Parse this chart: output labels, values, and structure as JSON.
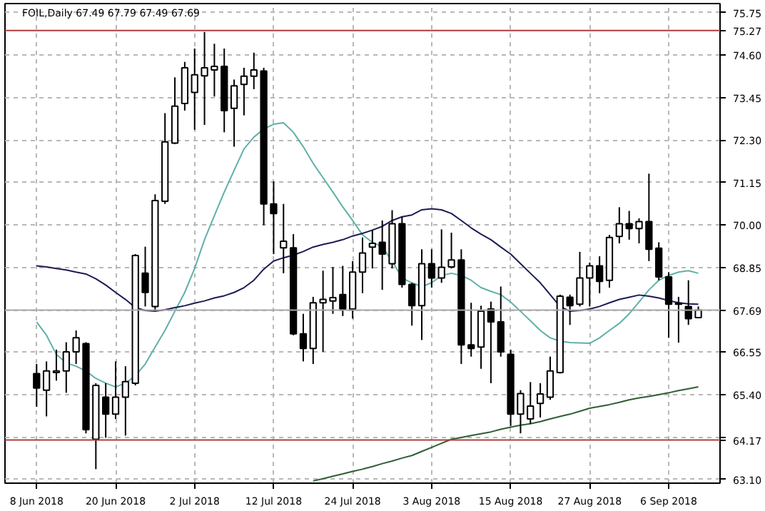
{
  "chart_data": {
    "type": "candlestick",
    "title": "FOIL,Daily  67.49 67.79 67.49 67.69",
    "categories": [
      "8 Jun 2018",
      null,
      null,
      null,
      null,
      null,
      null,
      null,
      "20 Jun 2018",
      null,
      null,
      null,
      null,
      null,
      null,
      null,
      "2 Jul 2018",
      null,
      null,
      null,
      null,
      null,
      null,
      null,
      "12 Jul 2018",
      null,
      null,
      null,
      null,
      null,
      null,
      null,
      "24 Jul 2018",
      null,
      null,
      null,
      null,
      null,
      null,
      null,
      "3 Aug 2018",
      null,
      null,
      null,
      null,
      null,
      null,
      null,
      "15 Aug 2018",
      null,
      null,
      null,
      null,
      null,
      null,
      null,
      "27 Aug 2018",
      null,
      null,
      null,
      null,
      null,
      null,
      null,
      "6 Sep 2018",
      null,
      null,
      null
    ],
    "ohlc": [
      [
        65.97,
        66.23,
        65.07,
        65.58
      ],
      [
        65.52,
        66.3,
        64.81,
        66.04
      ],
      [
        66.0,
        66.62,
        65.78,
        66.04
      ],
      [
        66.04,
        66.82,
        65.45,
        66.56
      ],
      [
        66.56,
        67.14,
        66.23,
        66.94
      ],
      [
        66.78,
        66.82,
        64.35,
        64.45
      ],
      [
        64.19,
        65.71,
        63.38,
        65.65
      ],
      [
        65.33,
        65.71,
        64.23,
        64.87
      ],
      [
        64.87,
        66.3,
        64.74,
        65.33
      ],
      [
        65.33,
        66.17,
        64.29,
        65.75
      ],
      [
        65.71,
        69.21,
        65.65,
        69.17
      ],
      [
        68.69,
        69.41,
        67.79,
        68.17
      ],
      [
        67.79,
        70.83,
        67.66,
        70.66
      ],
      [
        70.64,
        73.03,
        70.57,
        72.25
      ],
      [
        72.22,
        74.0,
        72.19,
        73.22
      ],
      [
        73.29,
        74.42,
        73.1,
        74.26
      ],
      [
        73.59,
        74.78,
        72.58,
        74.07
      ],
      [
        74.04,
        75.23,
        72.71,
        74.26
      ],
      [
        74.2,
        74.91,
        73.48,
        74.3
      ],
      [
        74.3,
        74.78,
        72.51,
        73.1
      ],
      [
        73.16,
        73.94,
        72.12,
        73.77
      ],
      [
        73.81,
        74.26,
        72.97,
        74.03
      ],
      [
        74.03,
        74.67,
        73.68,
        74.2
      ],
      [
        74.17,
        74.26,
        69.99,
        70.57
      ],
      [
        70.57,
        71.18,
        69.21,
        70.31
      ],
      [
        69.38,
        70.57,
        68.69,
        69.56
      ],
      [
        69.38,
        69.75,
        67.01,
        67.05
      ],
      [
        67.05,
        67.59,
        66.3,
        66.65
      ],
      [
        66.65,
        68.05,
        66.23,
        67.89
      ],
      [
        67.89,
        68.76,
        66.56,
        67.98
      ],
      [
        67.94,
        68.86,
        67.59,
        68.03
      ],
      [
        68.11,
        68.89,
        67.53,
        67.72
      ],
      [
        67.72,
        69.02,
        67.46,
        68.72
      ],
      [
        68.72,
        69.66,
        68.15,
        69.24
      ],
      [
        69.4,
        69.86,
        68.82,
        69.5
      ],
      [
        69.53,
        70.12,
        68.24,
        69.21
      ],
      [
        68.95,
        70.4,
        68.82,
        70.03
      ],
      [
        70.03,
        70.22,
        68.3,
        68.39
      ],
      [
        68.39,
        68.43,
        67.27,
        67.81
      ],
      [
        67.81,
        69.34,
        66.88,
        68.95
      ],
      [
        68.95,
        69.34,
        68.3,
        68.56
      ],
      [
        68.56,
        69.88,
        68.43,
        68.85
      ],
      [
        68.86,
        69.79,
        68.82,
        69.05
      ],
      [
        69.05,
        69.34,
        66.23,
        66.75
      ],
      [
        66.75,
        67.89,
        66.43,
        66.65
      ],
      [
        66.69,
        67.81,
        66.1,
        67.66
      ],
      [
        67.72,
        67.92,
        65.71,
        67.37
      ],
      [
        67.37,
        68.33,
        66.43,
        66.56
      ],
      [
        66.49,
        66.62,
        64.55,
        64.87
      ],
      [
        64.87,
        65.52,
        64.35,
        65.43
      ],
      [
        64.74,
        65.74,
        64.61,
        65.09
      ],
      [
        65.16,
        65.71,
        64.78,
        65.42
      ],
      [
        65.33,
        66.43,
        65.26,
        66.04
      ],
      [
        66.0,
        68.11,
        65.97,
        68.07
      ],
      [
        68.04,
        68.11,
        67.29,
        67.81
      ],
      [
        67.85,
        69.27,
        67.79,
        68.56
      ],
      [
        68.56,
        68.98,
        67.79,
        68.89
      ],
      [
        68.89,
        69.15,
        68.15,
        68.47
      ],
      [
        68.5,
        69.73,
        68.3,
        69.66
      ],
      [
        69.69,
        70.48,
        69.5,
        70.03
      ],
      [
        70.03,
        70.38,
        69.6,
        69.9
      ],
      [
        69.9,
        70.18,
        69.5,
        70.09
      ],
      [
        70.09,
        71.39,
        69.02,
        69.34
      ],
      [
        69.37,
        69.53,
        68.5,
        68.59
      ],
      [
        68.59,
        68.72,
        66.94,
        67.85
      ],
      [
        67.88,
        68.05,
        66.81,
        67.85
      ],
      [
        67.79,
        68.5,
        67.29,
        67.46
      ],
      [
        67.49,
        67.79,
        67.49,
        67.69
      ]
    ],
    "series": [
      {
        "type": "line",
        "color": "#5fb0aa",
        "values": [
          67.37,
          67.01,
          66.49,
          66.26,
          66.17,
          66.04,
          65.84,
          65.71,
          65.61,
          65.71,
          65.91,
          66.23,
          66.69,
          67.14,
          67.66,
          68.17,
          68.82,
          69.6,
          70.25,
          70.89,
          71.48,
          72.06,
          72.38,
          72.6,
          72.73,
          72.77,
          72.51,
          72.12,
          71.67,
          71.28,
          70.89,
          70.49,
          70.12,
          69.73,
          69.53,
          69.4,
          69.02,
          68.56,
          68.43,
          68.33,
          68.43,
          68.63,
          68.69,
          68.63,
          68.5,
          68.3,
          68.2,
          68.11,
          67.91,
          67.66,
          67.4,
          67.14,
          66.94,
          66.85,
          66.81,
          66.8,
          66.79,
          66.94,
          67.14,
          67.33,
          67.59,
          67.91,
          68.24,
          68.5,
          68.63,
          68.72,
          68.76,
          68.69
        ]
      },
      {
        "type": "line",
        "color": "#1c1c55",
        "values": [
          68.89,
          68.86,
          68.82,
          68.78,
          68.72,
          68.67,
          68.54,
          68.37,
          68.17,
          67.98,
          67.76,
          67.68,
          67.66,
          67.7,
          67.76,
          67.81,
          67.88,
          67.94,
          68.02,
          68.08,
          68.17,
          68.3,
          68.5,
          68.8,
          69.02,
          69.11,
          69.18,
          69.28,
          69.4,
          69.47,
          69.53,
          69.6,
          69.7,
          69.77,
          69.86,
          69.96,
          70.12,
          70.22,
          70.27,
          70.41,
          70.44,
          70.41,
          70.31,
          70.12,
          69.92,
          69.75,
          69.6,
          69.4,
          69.21,
          68.95,
          68.69,
          68.43,
          68.11,
          67.79,
          67.66,
          67.68,
          67.72,
          67.79,
          67.89,
          67.98,
          68.04,
          68.1,
          68.07,
          68.02,
          67.95,
          67.89,
          67.86,
          67.85
        ]
      },
      {
        "type": "line",
        "color": "#2e5e34",
        "values": [
          null,
          null,
          null,
          null,
          null,
          null,
          null,
          null,
          null,
          null,
          null,
          null,
          null,
          null,
          null,
          null,
          null,
          null,
          null,
          null,
          null,
          null,
          null,
          null,
          null,
          null,
          null,
          null,
          63.06,
          63.12,
          63.19,
          63.25,
          63.32,
          63.38,
          63.45,
          63.53,
          63.6,
          63.68,
          63.75,
          63.86,
          63.97,
          64.08,
          64.19,
          64.24,
          64.29,
          64.34,
          64.39,
          64.46,
          64.52,
          64.57,
          64.61,
          64.67,
          64.74,
          64.81,
          64.87,
          64.95,
          65.03,
          65.08,
          65.13,
          65.19,
          65.26,
          65.31,
          65.35,
          65.4,
          65.45,
          65.51,
          65.56,
          65.61
        ]
      }
    ],
    "ylim": [
      63.0,
      76.0
    ],
    "yticks": [
      {
        "value": 63.1,
        "label": "63.10"
      },
      {
        "value": 64.25,
        "label": null
      },
      {
        "value": 65.4,
        "label": "65.40"
      },
      {
        "value": 66.55,
        "label": "66.55"
      },
      {
        "value": 67.7,
        "label": null
      },
      {
        "value": 68.85,
        "label": "68.85"
      },
      {
        "value": 70.0,
        "label": "70.00"
      },
      {
        "value": 71.15,
        "label": "71.15"
      },
      {
        "value": 72.3,
        "label": "72.30"
      },
      {
        "value": 73.45,
        "label": "73.45"
      },
      {
        "value": 74.6,
        "label": "74.60"
      },
      {
        "value": 75.75,
        "label": "75.75"
      }
    ],
    "ref_lines": [
      {
        "axis": "y",
        "value": 75.27,
        "label": "75.27",
        "color": "#b23b3b"
      },
      {
        "axis": "y",
        "value": 64.17,
        "label": "64.17",
        "color": "#b23b3b"
      },
      {
        "axis": "y",
        "value": 67.69,
        "label": "67.69",
        "color": "#a8a8a8"
      }
    ],
    "grid": true
  }
}
